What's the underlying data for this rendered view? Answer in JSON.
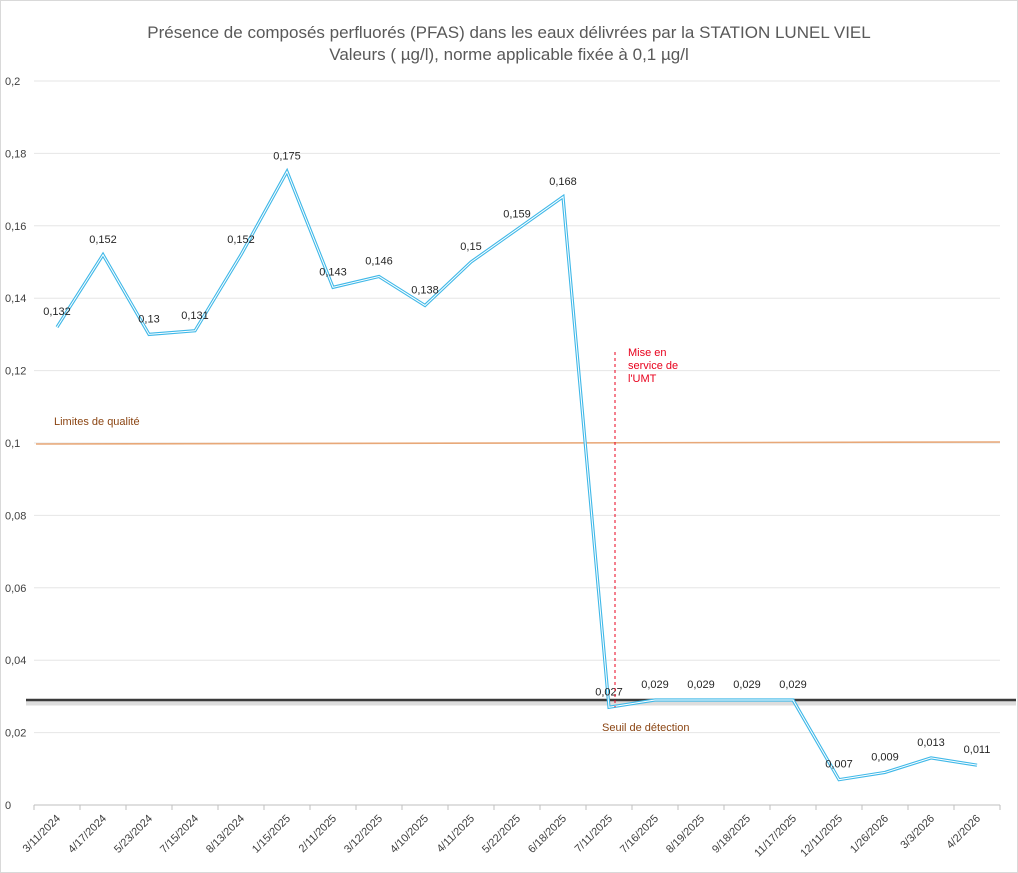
{
  "chart_data": {
    "type": "line",
    "title": "Présence de composés perfluorés (PFAS) dans les eaux délivrées par la STATION LUNEL VIEL",
    "subtitle": "Valeurs ( µg/l), norme applicable fixée à 0,1 µg/l",
    "xlabel": "",
    "ylabel": "",
    "ylim": [
      0,
      0.2
    ],
    "y_ticks": [
      "0",
      "0,02",
      "0,04",
      "0,06",
      "0,08",
      "0,1",
      "0,12",
      "0,14",
      "0,16",
      "0,18",
      "0,2"
    ],
    "grid": true,
    "categories": [
      "3/11/2024",
      "4/17/2024",
      "5/23/2024",
      "7/15/2024",
      "8/13/2024",
      "1/15/2025",
      "2/11/2025",
      "3/12/2025",
      "4/10/2025",
      "4/11/2025",
      "5/22/2025",
      "6/18/2025",
      "7/11/2025",
      "7/16/2025",
      "8/19/2025",
      "9/18/2025",
      "11/17/2025",
      "12/11/2025",
      "1/26/2026",
      "3/3/2026",
      "4/2/2026"
    ],
    "values": [
      0.132,
      0.152,
      0.13,
      0.131,
      0.152,
      0.175,
      0.143,
      0.146,
      0.138,
      0.15,
      0.159,
      0.168,
      0.027,
      0.029,
      0.029,
      0.029,
      0.029,
      0.007,
      0.009,
      0.013,
      0.011
    ],
    "data_labels": [
      "0,132",
      "0,152",
      "0,13",
      "0,131",
      "0,152",
      "0,175",
      "0,143",
      "0,146",
      "0,138",
      "0,15",
      "0,159",
      "0,168",
      "0,027",
      "0,029",
      "0,029",
      "0,029",
      "0,029",
      "0,007",
      "0,009",
      "0,013",
      "0,011"
    ],
    "series_color": "#3fb8e8",
    "reference_lines": [
      {
        "name": "Limites de qualité",
        "value": 0.1,
        "color": "#e8a878",
        "label_color": "#8b4513"
      },
      {
        "name": "Seuil de détection",
        "value": 0.029,
        "color": "#3a3a3a",
        "label_color": "#8b4513"
      }
    ],
    "annotations": [
      {
        "text_lines": [
          "Mise en",
          "service de",
          "l'UMT"
        ],
        "at_category": "7/11/2025",
        "color": "#e8001c"
      }
    ]
  }
}
